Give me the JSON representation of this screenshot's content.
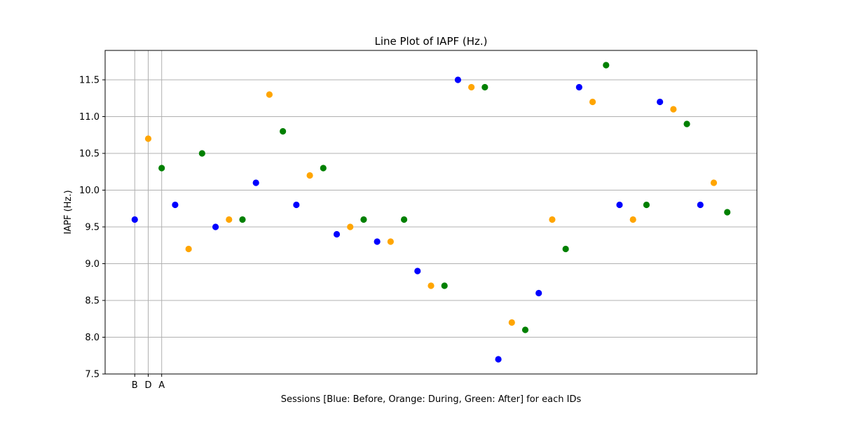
{
  "chart_data": {
    "type": "scatter",
    "title": "Line Plot of IAPF (Hz.)",
    "xlabel": "Sessions [Blue: Before, Orange: During, Green: After] for each IDs",
    "ylabel": "IAPF (Hz.)",
    "ylim": [
      7.5,
      11.9
    ],
    "xlim": [
      -2.2,
      46.2
    ],
    "y_ticks": [
      "7.5",
      "8.0",
      "8.5",
      "9.0",
      "9.5",
      "10.0",
      "10.5",
      "11.0",
      "11.5"
    ],
    "x_ticks": [
      "B",
      "D",
      "A"
    ],
    "grid": true,
    "legend": "none",
    "colors": {
      "Before": "#0000ff",
      "During": "#ffa500",
      "After": "#008000"
    },
    "session_order": [
      "Before",
      "During",
      "After"
    ],
    "values": [
      9.6,
      10.7,
      10.3,
      9.8,
      9.2,
      10.5,
      9.5,
      9.6,
      9.6,
      10.1,
      11.3,
      10.8,
      9.8,
      10.2,
      10.3,
      9.4,
      9.5,
      9.6,
      9.3,
      9.3,
      9.6,
      8.9,
      8.7,
      8.7,
      11.5,
      11.4,
      11.4,
      7.7,
      8.2,
      8.1,
      8.6,
      9.6,
      9.2,
      11.4,
      11.2,
      11.7,
      9.8,
      9.6,
      9.8,
      11.2,
      11.1,
      10.9,
      9.8,
      10.1,
      9.7
    ]
  }
}
